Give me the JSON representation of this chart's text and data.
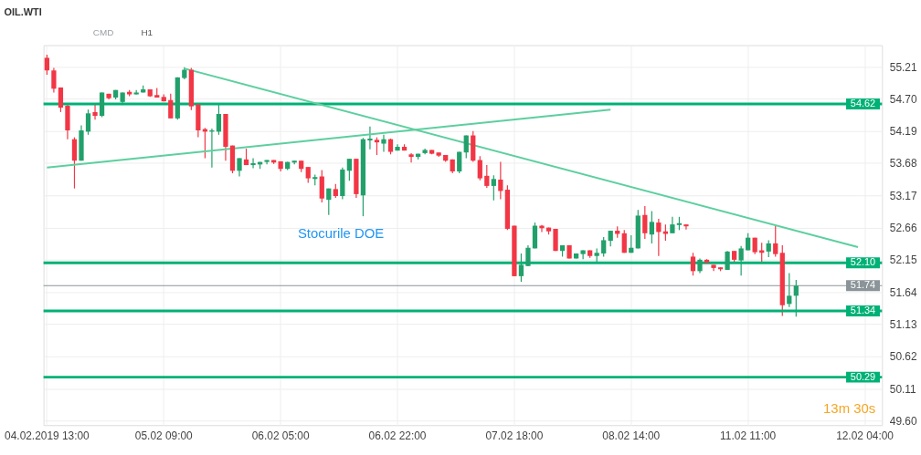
{
  "chart_data": {
    "type": "candlestick",
    "title": "OIL.WTI",
    "categories": [
      "04.02.2019 13:00",
      null,
      null,
      null,
      null,
      null,
      null,
      null,
      null,
      null,
      null,
      null,
      null,
      null,
      null,
      null,
      null,
      "05.02 09:00",
      null,
      null,
      null,
      null,
      null,
      null,
      null,
      null,
      null,
      null,
      null,
      null,
      null,
      null,
      null,
      null,
      "06.02 05:00",
      null,
      null,
      null,
      null,
      null,
      null,
      null,
      null,
      null,
      null,
      null,
      null,
      null,
      null,
      null,
      null,
      "06.02 22:00",
      null,
      null,
      null,
      null,
      null,
      null,
      null,
      null,
      null,
      null,
      null,
      null,
      null,
      null,
      null,
      null,
      "07.02 18:00",
      null,
      null,
      null,
      null,
      null,
      null,
      null,
      null,
      null,
      null,
      null,
      null,
      null,
      null,
      null,
      null,
      "08.02 14:00",
      null,
      null,
      null,
      null,
      null,
      null,
      null,
      null,
      null,
      null,
      null,
      null,
      null,
      null,
      null,
      null,
      "11.02 11:00",
      null,
      null,
      null,
      null,
      null,
      null,
      null,
      null,
      null,
      null,
      null,
      null,
      null,
      null,
      null,
      null,
      "12.02 04:00",
      null,
      null
    ],
    "ohlc": [
      [
        55.35,
        55.4,
        55.08,
        55.15
      ],
      [
        55.15,
        55.19,
        54.8,
        54.86
      ],
      [
        54.88,
        54.88,
        54.49,
        54.56
      ],
      [
        54.59,
        54.61,
        54.06,
        54.2
      ],
      [
        54.06,
        54.09,
        53.28,
        53.72
      ],
      [
        53.72,
        54.28,
        53.72,
        54.2
      ],
      [
        54.18,
        54.53,
        54.13,
        54.47
      ],
      [
        54.49,
        54.61,
        54.37,
        54.43
      ],
      [
        54.43,
        54.8,
        54.41,
        54.8
      ],
      [
        54.78,
        54.78,
        54.69,
        54.71
      ],
      [
        54.72,
        54.84,
        54.69,
        54.84
      ],
      [
        54.65,
        54.8,
        54.6,
        54.8
      ],
      [
        54.81,
        54.84,
        54.74,
        54.77
      ],
      [
        54.77,
        54.84,
        54.77,
        54.8
      ],
      [
        54.8,
        54.91,
        54.8,
        54.85
      ],
      [
        54.85,
        54.85,
        54.73,
        54.74
      ],
      [
        54.76,
        54.87,
        54.72,
        54.72
      ],
      [
        54.73,
        54.77,
        54.66,
        54.66
      ],
      [
        54.68,
        54.78,
        54.39,
        54.39
      ],
      [
        54.39,
        55.04,
        54.37,
        55.04
      ],
      [
        55.03,
        55.2,
        55.01,
        55.16
      ],
      [
        55.16,
        55.19,
        54.52,
        54.58
      ],
      [
        54.61,
        54.61,
        54.09,
        54.2
      ],
      [
        54.22,
        54.24,
        53.76,
        54.18
      ],
      [
        54.18,
        54.23,
        53.61,
        54.2
      ],
      [
        54.18,
        54.61,
        54.13,
        54.46
      ],
      [
        54.46,
        54.46,
        53.72,
        53.94
      ],
      [
        53.96,
        53.96,
        53.52,
        53.56
      ],
      [
        53.56,
        53.76,
        53.47,
        53.76
      ],
      [
        53.74,
        53.91,
        53.65,
        53.65
      ],
      [
        53.65,
        53.76,
        53.6,
        53.68
      ],
      [
        53.66,
        53.7,
        53.59,
        53.7
      ],
      [
        53.7,
        53.73,
        53.66,
        53.73
      ],
      [
        53.73,
        53.73,
        53.67,
        53.69
      ],
      [
        53.71,
        53.71,
        53.55,
        53.59
      ],
      [
        53.59,
        53.7,
        53.57,
        53.7
      ],
      [
        53.69,
        53.72,
        53.66,
        53.72
      ],
      [
        53.72,
        53.72,
        53.54,
        53.59
      ],
      [
        53.62,
        53.62,
        53.37,
        53.44
      ],
      [
        53.43,
        53.5,
        53.33,
        53.46
      ],
      [
        53.47,
        53.57,
        53.06,
        53.12
      ],
      [
        53.1,
        53.28,
        52.86,
        53.28
      ],
      [
        53.27,
        53.35,
        53.13,
        53.16
      ],
      [
        53.16,
        53.61,
        53.11,
        53.58
      ],
      [
        53.56,
        53.75,
        53.4,
        53.75
      ],
      [
        53.75,
        53.75,
        53.13,
        53.19
      ],
      [
        53.17,
        54.08,
        52.84,
        54.06
      ],
      [
        54.04,
        54.26,
        53.9,
        54.07
      ],
      [
        54.05,
        54.09,
        53.81,
        54.01
      ],
      [
        53.99,
        54.13,
        53.86,
        54.06
      ],
      [
        54.06,
        54.07,
        53.82,
        53.86
      ],
      [
        53.88,
        53.98,
        53.88,
        53.94
      ],
      [
        53.94,
        53.98,
        53.88,
        53.88
      ],
      [
        53.82,
        53.84,
        53.69,
        53.78
      ],
      [
        53.78,
        53.83,
        53.74,
        53.83
      ],
      [
        53.84,
        53.91,
        53.82,
        53.89
      ],
      [
        53.89,
        53.89,
        53.82,
        53.83
      ],
      [
        53.85,
        53.85,
        53.78,
        53.8
      ],
      [
        53.81,
        53.81,
        53.7,
        53.72
      ],
      [
        53.74,
        53.74,
        53.52,
        53.55
      ],
      [
        53.55,
        53.86,
        53.52,
        53.86
      ],
      [
        53.85,
        54.12,
        53.76,
        54.12
      ],
      [
        54.12,
        54.19,
        53.7,
        53.72
      ],
      [
        53.73,
        53.79,
        53.41,
        53.44
      ],
      [
        53.48,
        53.65,
        53.29,
        53.32
      ],
      [
        53.32,
        53.49,
        53.09,
        53.43
      ],
      [
        53.42,
        53.7,
        53.11,
        53.24
      ],
      [
        53.26,
        53.33,
        52.62,
        52.64
      ],
      [
        52.69,
        52.69,
        51.89,
        51.89
      ],
      [
        51.89,
        52.25,
        51.8,
        52.07
      ],
      [
        52.05,
        52.38,
        52.05,
        52.34
      ],
      [
        52.33,
        52.74,
        52.33,
        52.69
      ],
      [
        52.69,
        52.7,
        52.59,
        52.65
      ],
      [
        52.66,
        52.66,
        52.55,
        52.6
      ],
      [
        52.64,
        52.64,
        52.29,
        52.29
      ],
      [
        52.29,
        52.38,
        52.2,
        52.38
      ],
      [
        52.38,
        52.38,
        52.17,
        52.17
      ],
      [
        52.17,
        52.25,
        52.17,
        52.25
      ],
      [
        52.24,
        52.3,
        52.16,
        52.3
      ],
      [
        52.3,
        52.3,
        52.18,
        52.21
      ],
      [
        52.21,
        52.33,
        52.11,
        52.26
      ],
      [
        52.25,
        52.51,
        52.2,
        52.46
      ],
      [
        52.45,
        52.61,
        52.36,
        52.61
      ],
      [
        52.61,
        52.68,
        52.5,
        52.56
      ],
      [
        52.57,
        52.62,
        52.26,
        52.26
      ],
      [
        52.26,
        52.54,
        52.26,
        52.34
      ],
      [
        52.33,
        52.94,
        52.33,
        52.85
      ],
      [
        52.86,
        53.0,
        52.48,
        52.57
      ],
      [
        52.55,
        52.92,
        52.41,
        52.75
      ],
      [
        52.74,
        52.8,
        52.21,
        52.59
      ],
      [
        52.6,
        52.71,
        52.45,
        52.56
      ],
      [
        52.57,
        52.83,
        52.57,
        52.71
      ],
      [
        52.7,
        52.83,
        52.62,
        52.73
      ],
      [
        52.71,
        52.71,
        52.63,
        52.68
      ],
      [
        52.2,
        52.26,
        51.9,
        51.97
      ],
      [
        51.97,
        52.17,
        51.94,
        52.15
      ],
      [
        52.15,
        52.16,
        52.1,
        52.1
      ],
      [
        52.07,
        52.07,
        51.97,
        52.02
      ],
      [
        52.03,
        52.03,
        51.97,
        52.0
      ],
      [
        51.99,
        52.29,
        51.99,
        52.28
      ],
      [
        52.29,
        52.29,
        52.12,
        52.15
      ],
      [
        52.14,
        52.37,
        51.9,
        52.33
      ],
      [
        52.3,
        52.57,
        52.3,
        52.5
      ],
      [
        52.5,
        52.5,
        52.24,
        52.27
      ],
      [
        52.3,
        52.42,
        52.12,
        52.26
      ],
      [
        52.28,
        52.46,
        52.19,
        52.41
      ],
      [
        52.41,
        52.69,
        52.2,
        52.24
      ],
      [
        52.26,
        52.38,
        51.26,
        51.43
      ],
      [
        51.45,
        51.94,
        51.4,
        51.58
      ],
      [
        51.58,
        51.83,
        51.25,
        51.74
      ],
      null,
      null,
      null,
      null,
      null,
      null,
      null,
      null,
      null,
      null,
      null,
      null
    ],
    "colors": [
      "#f23645",
      "#f23645",
      "#f23645",
      "#f23645",
      "#f23645",
      "#22a06b",
      "#22a06b",
      "#f23645",
      "#22a06b",
      "#f23645",
      "#22a06b",
      "#22a06b",
      "#f23645",
      "#22a06b",
      "#22a06b",
      "#f23645",
      "#f23645",
      "#f23645",
      "#f23645",
      "#22a06b",
      "#22a06b",
      "#f23645",
      "#f23645",
      "#f23645",
      "#22a06b",
      "#22a06b",
      "#f23645",
      "#f23645",
      "#22a06b",
      "#f23645",
      "#22a06b",
      "#22a06b",
      "#22a06b",
      "#f23645",
      "#f23645",
      "#22a06b",
      "#22a06b",
      "#f23645",
      "#f23645",
      "#22a06b",
      "#f23645",
      "#22a06b",
      "#f23645",
      "#22a06b",
      "#22a06b",
      "#f23645",
      "#22a06b",
      "#22a06b",
      "#f23645",
      "#22a06b",
      "#f23645",
      "#22a06b",
      "#f23645",
      "#f23645",
      "#22a06b",
      "#22a06b",
      "#f23645",
      "#f23645",
      "#f23645",
      "#f23645",
      "#22a06b",
      "#22a06b",
      "#f23645",
      "#f23645",
      "#f23645",
      "#22a06b",
      "#f23645",
      "#f23645",
      "#f23645",
      "#22a06b",
      "#22a06b",
      "#22a06b",
      "#f23645",
      "#f23645",
      "#f23645",
      "#22a06b",
      "#f23645",
      "#22a06b",
      "#22a06b",
      "#f23645",
      "#22a06b",
      "#22a06b",
      "#22a06b",
      "#f23645",
      "#f23645",
      "#22a06b",
      "#22a06b",
      "#f23645",
      "#22a06b",
      "#f23645",
      "#f23645",
      "#22a06b",
      "#22a06b",
      "#f23645",
      "#f23645",
      "#22a06b",
      "#f23645",
      "#f23645",
      "#f23645",
      "#22a06b",
      "#f23645",
      "#22a06b",
      "#22a06b",
      "#f23645",
      "#f23645",
      "#22a06b",
      "#f23645",
      "#f23645",
      "#22a06b",
      "#22a06b",
      null,
      null,
      null,
      null,
      null,
      null,
      null,
      null,
      null,
      null,
      null,
      null
    ],
    "series": [
      {
        "type": "line",
        "color": "#5ccf9f",
        "values": [
          null,
          null,
          null,
          null,
          null,
          null,
          null,
          null,
          null,
          null,
          null,
          null,
          null,
          null,
          null,
          null,
          null,
          null,
          null,
          null,
          55.18,
          null,
          null,
          null,
          null,
          null,
          null,
          null,
          null,
          null,
          null,
          null,
          null,
          null,
          null,
          null,
          null,
          null,
          null,
          null,
          null,
          null,
          null,
          null,
          null,
          null,
          null,
          null,
          null,
          null,
          null,
          null,
          null,
          null,
          null,
          null,
          null,
          null,
          null,
          null,
          null,
          null,
          null,
          null,
          null,
          null,
          null,
          null,
          null,
          null,
          null,
          null,
          null,
          null,
          null,
          null,
          null,
          null,
          null,
          null,
          null,
          null,
          null,
          null,
          null,
          null,
          null,
          null,
          null,
          null,
          null,
          null,
          null,
          null,
          null,
          null,
          null,
          null,
          null,
          null,
          null,
          null,
          null,
          null,
          null,
          null,
          null,
          null,
          null,
          null,
          null,
          null,
          null,
          null,
          null,
          null,
          null,
          null,
          52.35,
          null,
          null,
          null
        ]
      },
      {
        "type": "line",
        "color": "#5ccf9f",
        "values": [
          53.61,
          null,
          null,
          null,
          null,
          null,
          null,
          null,
          null,
          null,
          null,
          null,
          null,
          null,
          null,
          null,
          null,
          null,
          null,
          null,
          null,
          null,
          null,
          null,
          null,
          null,
          null,
          null,
          null,
          null,
          null,
          null,
          null,
          null,
          null,
          null,
          null,
          null,
          null,
          null,
          null,
          null,
          null,
          null,
          null,
          null,
          null,
          null,
          null,
          null,
          null,
          null,
          null,
          null,
          null,
          null,
          null,
          null,
          null,
          null,
          null,
          null,
          null,
          null,
          null,
          null,
          null,
          null,
          null,
          null,
          null,
          null,
          null,
          null,
          null,
          null,
          null,
          null,
          null,
          null,
          null,
          null,
          54.53,
          null,
          null,
          null,
          null,
          null,
          null,
          null,
          null,
          null,
          null,
          null,
          null,
          null,
          null,
          null,
          null,
          null,
          null,
          null,
          null,
          null,
          null,
          null,
          null,
          null,
          null,
          null,
          null,
          null,
          null,
          null,
          null,
          null,
          null,
          null,
          null,
          null,
          null,
          null
        ]
      }
    ],
    "ylim": [
      49.53,
      55.55
    ],
    "yticks": [
      {
        "value": 49.6,
        "label": "49.60"
      },
      50.11,
      50.62,
      51.13,
      51.64,
      52.15,
      52.66,
      53.17,
      53.68,
      54.19,
      {
        "value": 54.7,
        "label": "54.70"
      },
      55.21
    ],
    "grid": true,
    "ref_lines": [
      {
        "axis": "y",
        "value": 54.62,
        "label": "54.62",
        "color": "#00b176"
      },
      {
        "axis": "y",
        "value": 52.1,
        "label": "52.10",
        "color": "#00b176"
      },
      {
        "axis": "y",
        "value": 51.74,
        "label": "51.74",
        "color": "#8a9499"
      },
      {
        "axis": "y",
        "value": 51.34,
        "label": "51.34",
        "color": "#00b176"
      },
      {
        "axis": "y",
        "value": 50.29,
        "label": "50.29",
        "color": "#00b176"
      }
    ],
    "annotations": [
      "CMD",
      "H1",
      "13m 30s",
      "Stocurile DOE"
    ]
  }
}
